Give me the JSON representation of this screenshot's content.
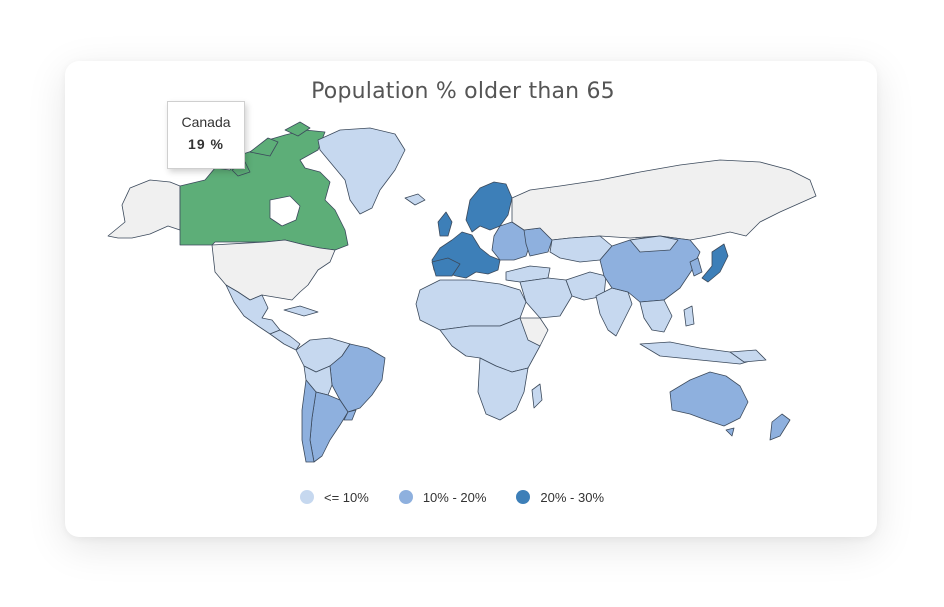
{
  "title": "Population % older than 65",
  "colors": {
    "no_data": "#f0f0f0",
    "low": "#c6d8ef",
    "mid": "#8eb0de",
    "high": "#3d7fb8",
    "highlight": "#5dae78",
    "border": "#3c4a5c"
  },
  "tooltip": {
    "country": "Canada",
    "value": "19 %"
  },
  "legend": [
    {
      "label": "<= 10%",
      "class": "low"
    },
    {
      "label": "10% - 20%",
      "class": "mid"
    },
    {
      "label": "20% - 30%",
      "class": "high"
    }
  ],
  "hovered_country": "Canada"
}
